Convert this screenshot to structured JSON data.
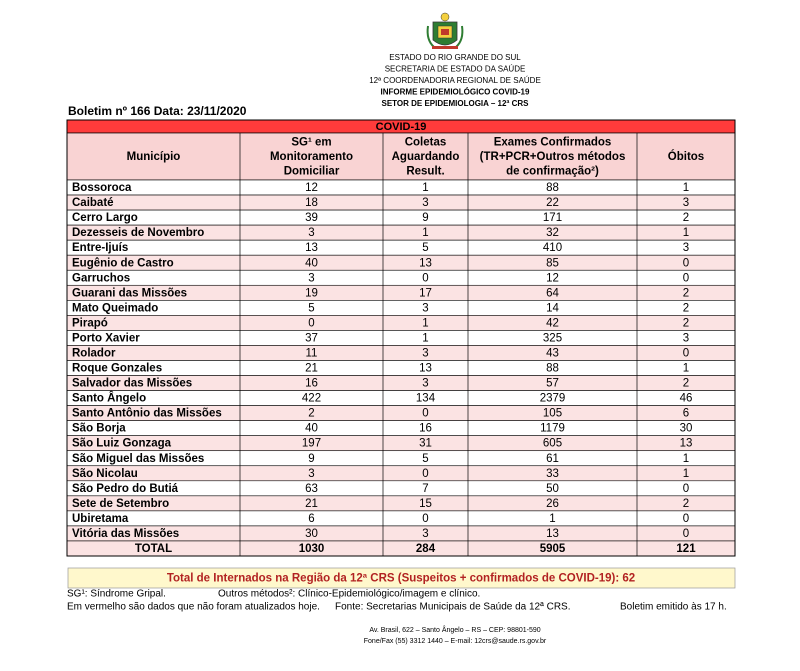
{
  "header": {
    "lines": [
      "ESTADO DO RIO GRANDE DO SUL",
      "SECRETARIA DE ESTADO DA SAÚDE",
      "12ª COORDENADORIA REGIONAL DE SAÚDE",
      "INFORME EPIDEMIOLÓGICO COVID-19",
      "SETOR DE EPIDEMIOLOGIA – 12ª CRS"
    ]
  },
  "bulletin": "Boletim nº 166 Data: 23/11/2020",
  "table": {
    "banner": "COVID-19",
    "columns": [
      [
        "Município"
      ],
      [
        "SG¹ em",
        "Monitoramento",
        "Domiciliar"
      ],
      [
        "Coletas",
        "Aguardando",
        "Result."
      ],
      [
        "Exames Confirmados",
        "(TR+PCR+Outros métodos",
        "de confirmação²)"
      ],
      [
        "Óbitos"
      ]
    ],
    "rows": [
      [
        "Bossoroca",
        12,
        1,
        88,
        1
      ],
      [
        "Caibaté",
        18,
        3,
        22,
        3
      ],
      [
        "Cerro Largo",
        39,
        9,
        171,
        2
      ],
      [
        "Dezesseis de Novembro",
        3,
        1,
        32,
        1
      ],
      [
        "Entre-Ijuís",
        13,
        5,
        410,
        3
      ],
      [
        "Eugênio de Castro",
        40,
        13,
        85,
        0
      ],
      [
        "Garruchos",
        3,
        0,
        12,
        0
      ],
      [
        "Guarani das Missões",
        19,
        17,
        64,
        2
      ],
      [
        "Mato Queimado",
        5,
        3,
        14,
        2
      ],
      [
        "Pirapó",
        0,
        1,
        42,
        2
      ],
      [
        "Porto Xavier",
        37,
        1,
        325,
        3
      ],
      [
        "Rolador",
        11,
        3,
        43,
        0
      ],
      [
        "Roque Gonzales",
        21,
        13,
        88,
        1
      ],
      [
        "Salvador das Missões",
        16,
        3,
        57,
        2
      ],
      [
        "Santo Ângelo",
        422,
        134,
        2379,
        46
      ],
      [
        "Santo Antônio das Missões",
        2,
        0,
        105,
        6
      ],
      [
        "São Borja",
        40,
        16,
        1179,
        30
      ],
      [
        "São Luiz Gonzaga",
        197,
        31,
        605,
        13
      ],
      [
        "São Miguel das Missões",
        9,
        5,
        61,
        1
      ],
      [
        "São Nicolau",
        3,
        0,
        33,
        1
      ],
      [
        "São Pedro do Butiá",
        63,
        7,
        50,
        0
      ],
      [
        "Sete de Setembro",
        21,
        15,
        26,
        2
      ],
      [
        "Ubiretama",
        6,
        0,
        1,
        0
      ],
      [
        "Vitória das Missões",
        30,
        3,
        13,
        0
      ]
    ],
    "total": [
      "TOTAL",
      1030,
      284,
      5905,
      121
    ]
  },
  "hospitalized": "Total de Internados na Região da 12ª CRS (Suspeitos + confirmados de COVID-19): 62",
  "notes": [
    [
      "SG¹: Síndrome Gripal.",
      "Outros métodos²: Clínico-Epidemiológico/imagem e clínico."
    ],
    [
      "Em vermelho são dados que não foram atualizados hoje.",
      "Fonte: Secretarias Municipais de Saúde da 12ª CRS.",
      "Boletim emitido às 17 h."
    ]
  ],
  "footer": [
    "Av. Brasil, 622 – Santo Ângelo – RS – CEP: 98801-590",
    "Fone/Fax (55) 3312 1440 – E-mail: 12crs@saude.rs.gov.br"
  ]
}
